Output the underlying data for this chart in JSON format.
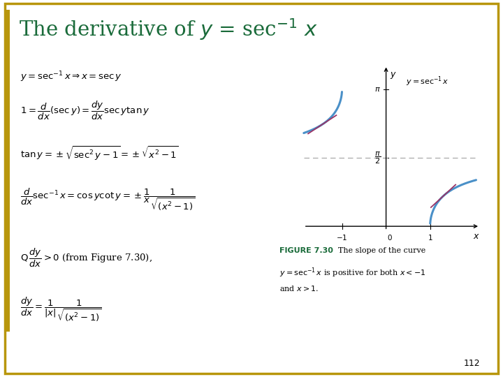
{
  "title_parts": [
    {
      "text": "The derivative of ",
      "style": "normal",
      "color": "#1a6b3a"
    },
    {
      "text": "y",
      "style": "italic",
      "color": "#1a6b3a"
    },
    {
      "text": " = sec",
      "style": "normal",
      "color": "#1a6b3a"
    },
    {
      "text": "-1",
      "style": "superscript",
      "color": "#1a6b3a"
    },
    {
      "text": " x",
      "style": "italic",
      "color": "#1a6b3a"
    }
  ],
  "title_color": "#1a6b3a",
  "bg_color": "#ffffff",
  "border_color": "#b8960c",
  "page_number": "112",
  "graph": {
    "xlim": [
      -2.2,
      2.2
    ],
    "ylim": [
      -0.3,
      3.8
    ],
    "pi": 3.14159265358979,
    "curve_color": "#4a90c8",
    "tangent_color": "#993366",
    "dashed_color": "#aaaaaa"
  },
  "figure_caption_bold": "FIGURE 7.30",
  "figure_caption_color": "#1a6b3a"
}
